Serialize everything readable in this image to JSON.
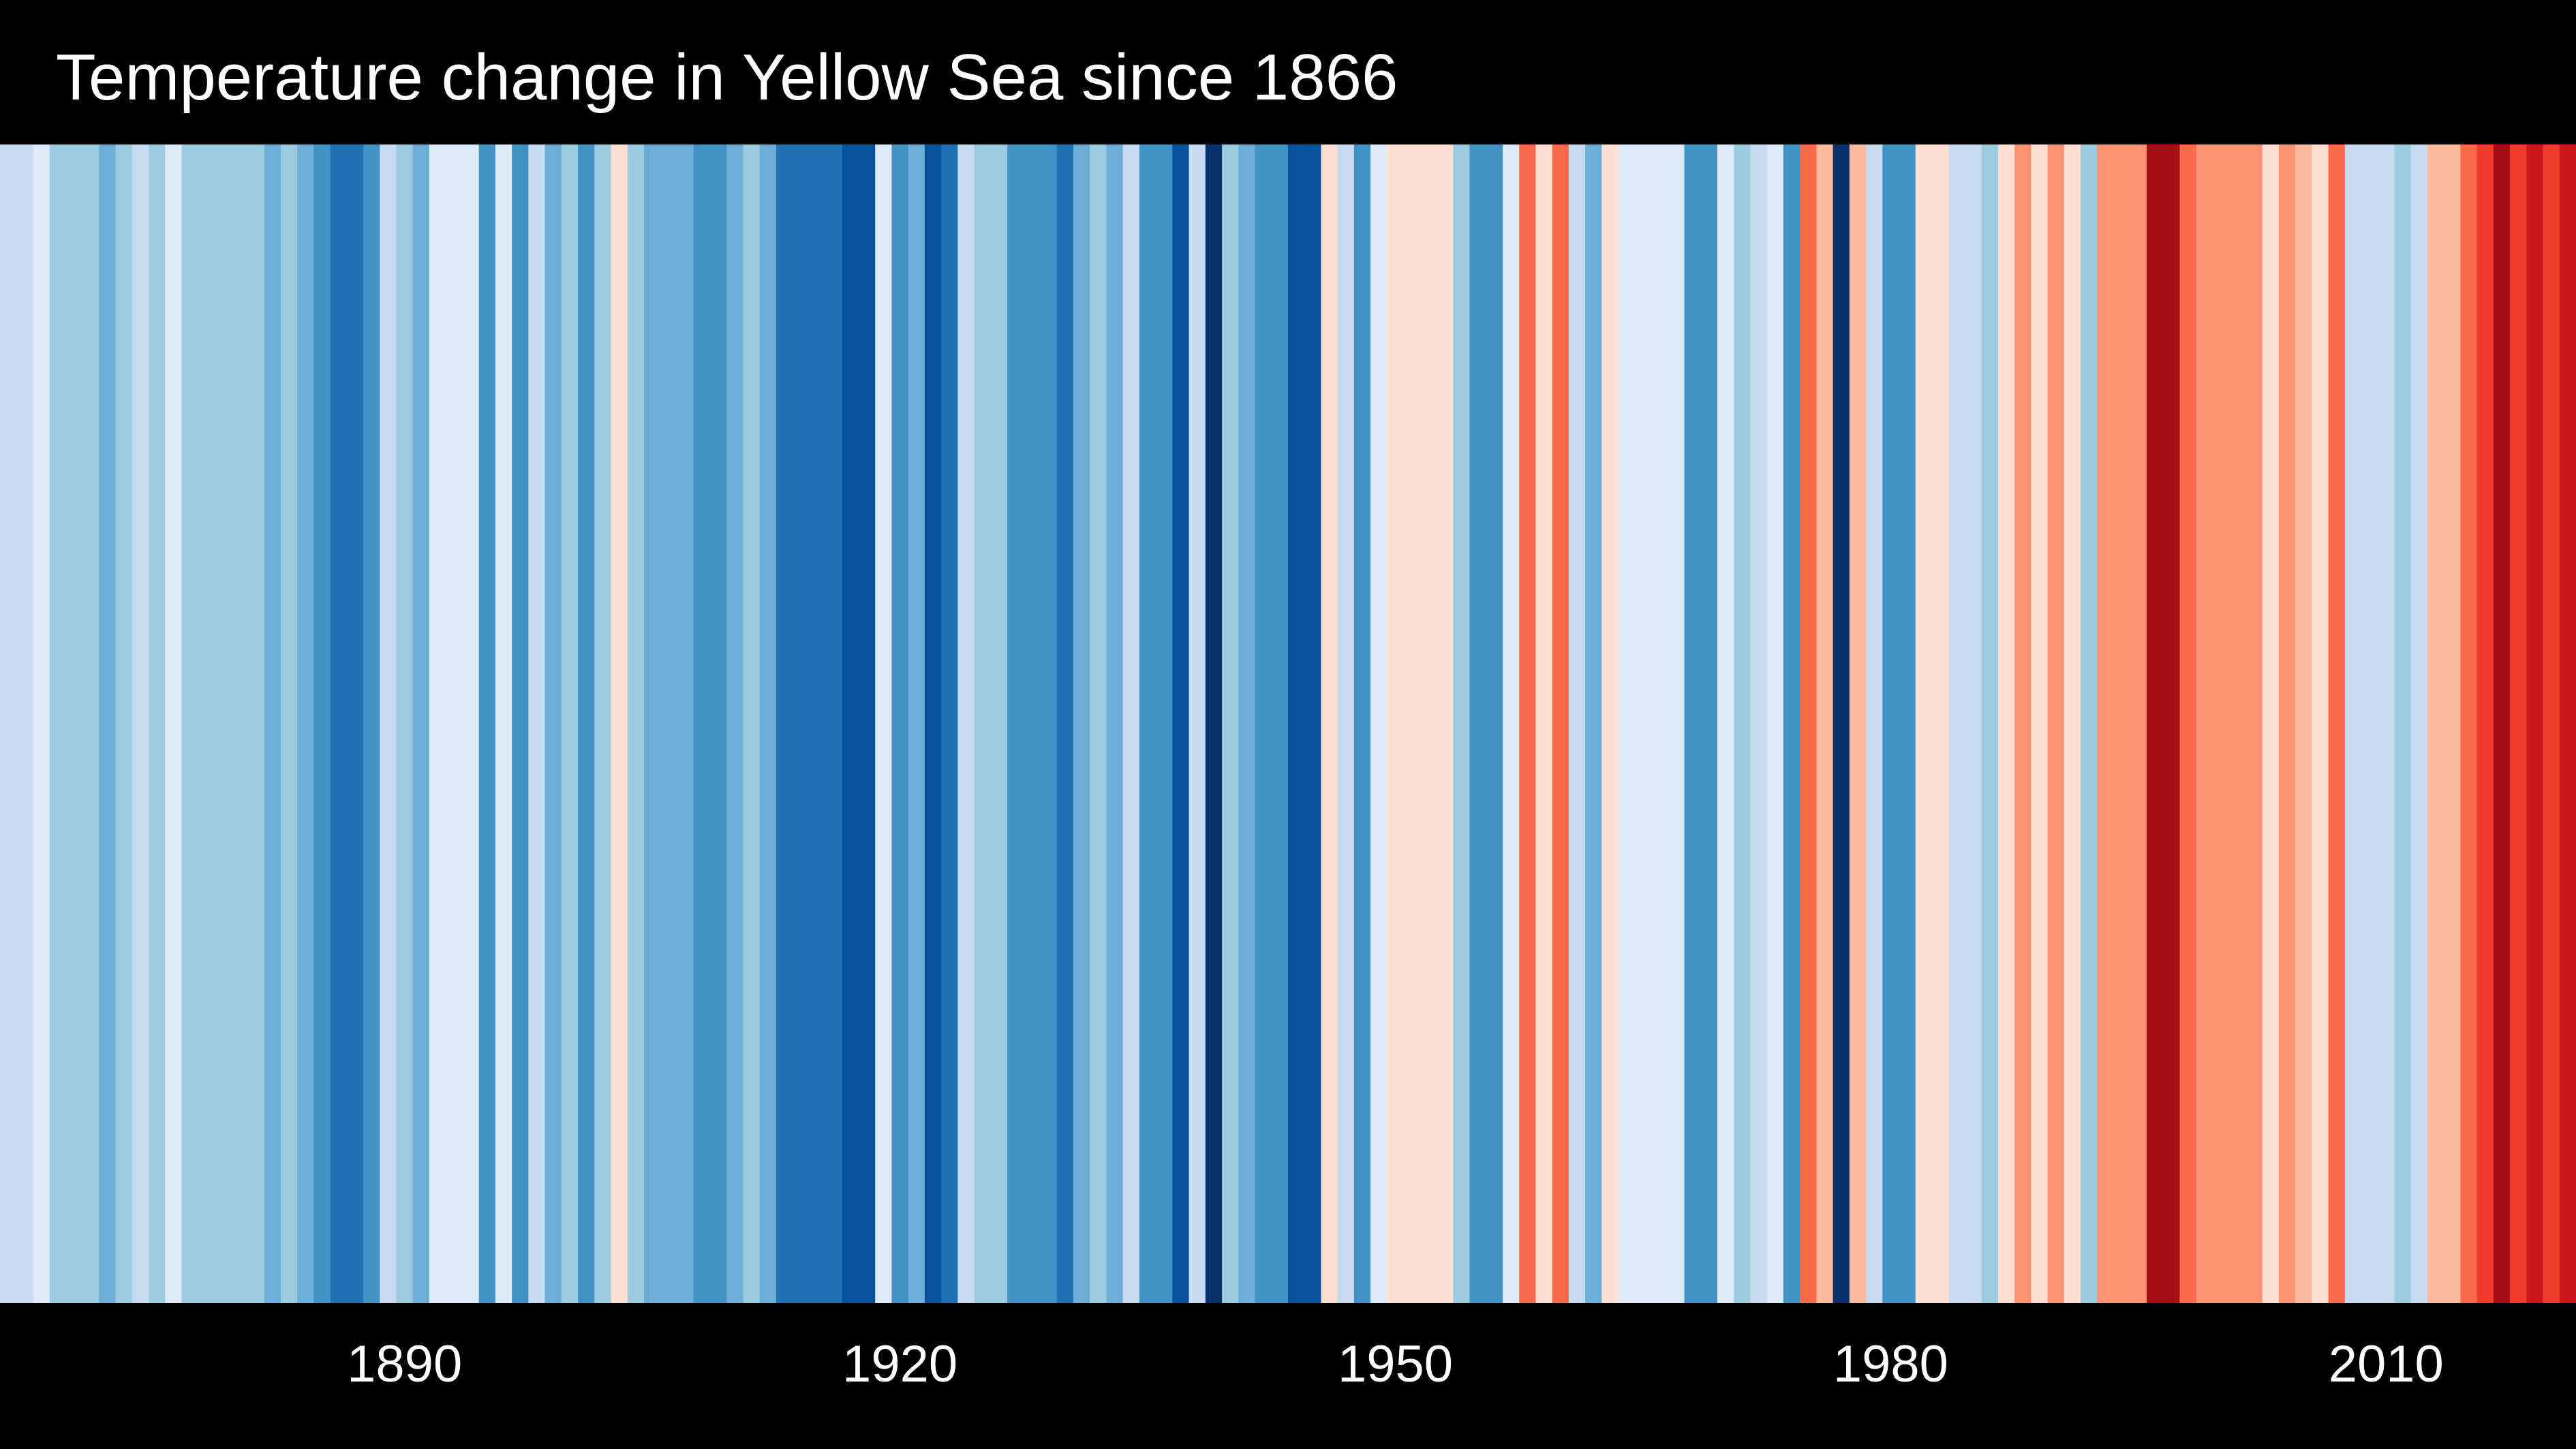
{
  "chart_data": {
    "type": "heatmap",
    "title": "Temperature change in Yellow Sea since 1866",
    "xlabel": "",
    "ylabel": "",
    "grid": false,
    "legend": "none",
    "x_start": 1866,
    "x_end": 2021,
    "xticks": [
      1890,
      1920,
      1950,
      1980,
      2010
    ],
    "tick_labels": [
      "1890",
      "1920",
      "1950",
      "1980",
      "2010"
    ],
    "palette": [
      "#08306b",
      "#08519c",
      "#2171b5",
      "#4292c6",
      "#6baed6",
      "#9ecae1",
      "#c6dbef",
      "#deebf7",
      "#fee0d2",
      "#fcbba1",
      "#fc9272",
      "#fb6a4a",
      "#ef3b2c",
      "#cb181d",
      "#a50f15",
      "#67000d"
    ],
    "stripe_level_scale": "0 = coolest (#08306b) … 15 = warmest (#67000d)",
    "stripes": [
      {
        "year": 1866,
        "level": 6
      },
      {
        "year": 1867,
        "level": 6
      },
      {
        "year": 1868,
        "level": 7
      },
      {
        "year": 1869,
        "level": 5
      },
      {
        "year": 1870,
        "level": 5
      },
      {
        "year": 1871,
        "level": 5
      },
      {
        "year": 1872,
        "level": 4
      },
      {
        "year": 1873,
        "level": 5
      },
      {
        "year": 1874,
        "level": 6
      },
      {
        "year": 1875,
        "level": 5
      },
      {
        "year": 1876,
        "level": 7
      },
      {
        "year": 1877,
        "level": 5
      },
      {
        "year": 1878,
        "level": 5
      },
      {
        "year": 1879,
        "level": 5
      },
      {
        "year": 1880,
        "level": 5
      },
      {
        "year": 1881,
        "level": 5
      },
      {
        "year": 1882,
        "level": 4
      },
      {
        "year": 1883,
        "level": 5
      },
      {
        "year": 1884,
        "level": 4
      },
      {
        "year": 1885,
        "level": 3
      },
      {
        "year": 1886,
        "level": 2
      },
      {
        "year": 1887,
        "level": 2
      },
      {
        "year": 1888,
        "level": 3
      },
      {
        "year": 1889,
        "level": 6
      },
      {
        "year": 1890,
        "level": 5
      },
      {
        "year": 1891,
        "level": 4
      },
      {
        "year": 1892,
        "level": 7
      },
      {
        "year": 1893,
        "level": 7
      },
      {
        "year": 1894,
        "level": 7
      },
      {
        "year": 1895,
        "level": 3
      },
      {
        "year": 1896,
        "level": 7
      },
      {
        "year": 1897,
        "level": 3
      },
      {
        "year": 1898,
        "level": 6
      },
      {
        "year": 1899,
        "level": 4
      },
      {
        "year": 1900,
        "level": 5
      },
      {
        "year": 1901,
        "level": 3
      },
      {
        "year": 1902,
        "level": 5
      },
      {
        "year": 1903,
        "level": 8
      },
      {
        "year": 1904,
        "level": 5
      },
      {
        "year": 1905,
        "level": 4
      },
      {
        "year": 1906,
        "level": 4
      },
      {
        "year": 1907,
        "level": 4
      },
      {
        "year": 1908,
        "level": 3
      },
      {
        "year": 1909,
        "level": 3
      },
      {
        "year": 1910,
        "level": 4
      },
      {
        "year": 1911,
        "level": 5
      },
      {
        "year": 1912,
        "level": 4
      },
      {
        "year": 1913,
        "level": 2
      },
      {
        "year": 1914,
        "level": 2
      },
      {
        "year": 1915,
        "level": 2
      },
      {
        "year": 1916,
        "level": 2
      },
      {
        "year": 1917,
        "level": 1
      },
      {
        "year": 1918,
        "level": 1
      },
      {
        "year": 1919,
        "level": 7
      },
      {
        "year": 1920,
        "level": 3
      },
      {
        "year": 1921,
        "level": 4
      },
      {
        "year": 1922,
        "level": 1
      },
      {
        "year": 1923,
        "level": 2
      },
      {
        "year": 1924,
        "level": 6
      },
      {
        "year": 1925,
        "level": 5
      },
      {
        "year": 1926,
        "level": 5
      },
      {
        "year": 1927,
        "level": 3
      },
      {
        "year": 1928,
        "level": 3
      },
      {
        "year": 1929,
        "level": 3
      },
      {
        "year": 1930,
        "level": 2
      },
      {
        "year": 1931,
        "level": 4
      },
      {
        "year": 1932,
        "level": 5
      },
      {
        "year": 1933,
        "level": 4
      },
      {
        "year": 1934,
        "level": 6
      },
      {
        "year": 1935,
        "level": 3
      },
      {
        "year": 1936,
        "level": 3
      },
      {
        "year": 1937,
        "level": 1
      },
      {
        "year": 1938,
        "level": 6
      },
      {
        "year": 1939,
        "level": 0
      },
      {
        "year": 1940,
        "level": 5
      },
      {
        "year": 1941,
        "level": 4
      },
      {
        "year": 1942,
        "level": 3
      },
      {
        "year": 1943,
        "level": 3
      },
      {
        "year": 1944,
        "level": 1
      },
      {
        "year": 1945,
        "level": 1
      },
      {
        "year": 1946,
        "level": 8
      },
      {
        "year": 1947,
        "level": 6
      },
      {
        "year": 1948,
        "level": 3
      },
      {
        "year": 1949,
        "level": 7
      },
      {
        "year": 1950,
        "level": 8
      },
      {
        "year": 1951,
        "level": 8
      },
      {
        "year": 1952,
        "level": 8
      },
      {
        "year": 1953,
        "level": 8
      },
      {
        "year": 1954,
        "level": 5
      },
      {
        "year": 1955,
        "level": 3
      },
      {
        "year": 1956,
        "level": 3
      },
      {
        "year": 1957,
        "level": 7
      },
      {
        "year": 1958,
        "level": 11
      },
      {
        "year": 1959,
        "level": 8
      },
      {
        "year": 1960,
        "level": 11
      },
      {
        "year": 1961,
        "level": 6
      },
      {
        "year": 1962,
        "level": 4
      },
      {
        "year": 1963,
        "level": 8
      },
      {
        "year": 1964,
        "level": 7
      },
      {
        "year": 1965,
        "level": 7
      },
      {
        "year": 1966,
        "level": 7
      },
      {
        "year": 1967,
        "level": 7
      },
      {
        "year": 1968,
        "level": 3
      },
      {
        "year": 1969,
        "level": 3
      },
      {
        "year": 1970,
        "level": 7
      },
      {
        "year": 1971,
        "level": 5
      },
      {
        "year": 1972,
        "level": 6
      },
      {
        "year": 1973,
        "level": 7
      },
      {
        "year": 1974,
        "level": 3
      },
      {
        "year": 1975,
        "level": 11
      },
      {
        "year": 1976,
        "level": 9
      },
      {
        "year": 1977,
        "level": 0
      },
      {
        "year": 1978,
        "level": 9
      },
      {
        "year": 1979,
        "level": 6
      },
      {
        "year": 1980,
        "level": 3
      },
      {
        "year": 1981,
        "level": 3
      },
      {
        "year": 1982,
        "level": 8
      },
      {
        "year": 1983,
        "level": 8
      },
      {
        "year": 1984,
        "level": 6
      },
      {
        "year": 1985,
        "level": 6
      },
      {
        "year": 1986,
        "level": 5
      },
      {
        "year": 1987,
        "level": 8
      },
      {
        "year": 1988,
        "level": 10
      },
      {
        "year": 1989,
        "level": 8
      },
      {
        "year": 1990,
        "level": 10
      },
      {
        "year": 1991,
        "level": 8
      },
      {
        "year": 1992,
        "level": 5
      },
      {
        "year": 1993,
        "level": 10
      },
      {
        "year": 1994,
        "level": 10
      },
      {
        "year": 1995,
        "level": 10
      },
      {
        "year": 1996,
        "level": 14
      },
      {
        "year": 1997,
        "level": 14
      },
      {
        "year": 1998,
        "level": 11
      },
      {
        "year": 1999,
        "level": 10
      },
      {
        "year": 2000,
        "level": 10
      },
      {
        "year": 2001,
        "level": 10
      },
      {
        "year": 2002,
        "level": 10
      },
      {
        "year": 2003,
        "level": 8
      },
      {
        "year": 2004,
        "level": 10
      },
      {
        "year": 2005,
        "level": 9
      },
      {
        "year": 2006,
        "level": 8
      },
      {
        "year": 2007,
        "level": 11
      },
      {
        "year": 2008,
        "level": 6
      },
      {
        "year": 2009,
        "level": 6
      },
      {
        "year": 2010,
        "level": 6
      },
      {
        "year": 2011,
        "level": 5
      },
      {
        "year": 2012,
        "level": 6
      },
      {
        "year": 2013,
        "level": 9
      },
      {
        "year": 2014,
        "level": 9
      },
      {
        "year": 2015,
        "level": 11
      },
      {
        "year": 2016,
        "level": 12
      },
      {
        "year": 2017,
        "level": 14
      },
      {
        "year": 2018,
        "level": 12
      },
      {
        "year": 2019,
        "level": 13
      },
      {
        "year": 2020,
        "level": 12
      },
      {
        "year": 2021,
        "level": 13
      }
    ]
  }
}
